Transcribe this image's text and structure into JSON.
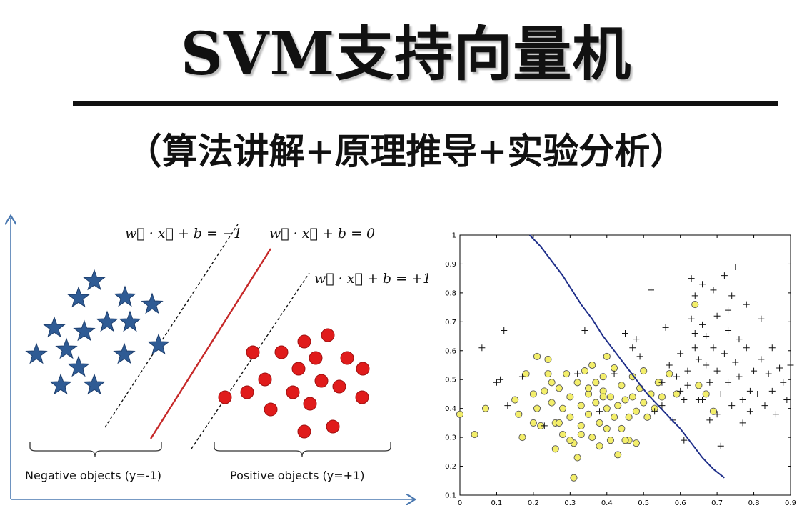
{
  "header": {
    "title": "SVM支持向量机",
    "subtitle": "（算法讲解+原理推导+实验分析）"
  },
  "left_diagram": {
    "equations": [
      "w⃗ · x⃗ + b = −1",
      "w⃗ · x⃗ + b = 0",
      "w⃗ · x⃗ + b = +1"
    ],
    "captions": {
      "negative": "Negative objects (y=-1)",
      "positive": "Positive objects (y=+1)"
    },
    "colors": {
      "star": "#2f5b94",
      "dot": "#e01b1b",
      "hyperplane": "#c62828",
      "margin": "#111111"
    },
    "icons": {
      "negative": "star-icon",
      "positive": "circle-icon"
    }
  },
  "chart_data": {
    "type": "scatter",
    "title": "",
    "xlabel": "",
    "ylabel": "",
    "xlim": [
      0,
      0.9
    ],
    "ylim": [
      0.1,
      1
    ],
    "x_ticks": [
      "0",
      "0.1",
      "0.2",
      "0.3",
      "0.4",
      "0.5",
      "0.6",
      "0.7",
      "0.8",
      "0.9"
    ],
    "y_ticks": [
      "0.1",
      "0.2",
      "0.3",
      "0.4",
      "0.5",
      "0.6",
      "0.7",
      "0.8",
      "0.9",
      "1"
    ],
    "colors": {
      "yellow": "#f3ee6a",
      "cross": "#111111",
      "boundary": "#1f2f8a"
    },
    "series": [
      {
        "marker": "circle",
        "points": [
          [
            0.0,
            0.38
          ],
          [
            0.04,
            0.31
          ],
          [
            0.07,
            0.4
          ],
          [
            0.15,
            0.43
          ],
          [
            0.16,
            0.38
          ],
          [
            0.17,
            0.3
          ],
          [
            0.18,
            0.52
          ],
          [
            0.2,
            0.45
          ],
          [
            0.21,
            0.4
          ],
          [
            0.22,
            0.34
          ],
          [
            0.23,
            0.46
          ],
          [
            0.24,
            0.57
          ],
          [
            0.24,
            0.52
          ],
          [
            0.25,
            0.42
          ],
          [
            0.26,
            0.35
          ],
          [
            0.26,
            0.26
          ],
          [
            0.27,
            0.47
          ],
          [
            0.28,
            0.4
          ],
          [
            0.28,
            0.31
          ],
          [
            0.29,
            0.52
          ],
          [
            0.3,
            0.44
          ],
          [
            0.3,
            0.37
          ],
          [
            0.31,
            0.28
          ],
          [
            0.31,
            0.16
          ],
          [
            0.32,
            0.49
          ],
          [
            0.32,
            0.23
          ],
          [
            0.33,
            0.41
          ],
          [
            0.33,
            0.34
          ],
          [
            0.34,
            0.53
          ],
          [
            0.35,
            0.45
          ],
          [
            0.35,
            0.38
          ],
          [
            0.36,
            0.3
          ],
          [
            0.36,
            0.55
          ],
          [
            0.37,
            0.49
          ],
          [
            0.37,
            0.42
          ],
          [
            0.38,
            0.35
          ],
          [
            0.38,
            0.27
          ],
          [
            0.39,
            0.51
          ],
          [
            0.39,
            0.46
          ],
          [
            0.4,
            0.4
          ],
          [
            0.4,
            0.33
          ],
          [
            0.41,
            0.44
          ],
          [
            0.41,
            0.29
          ],
          [
            0.42,
            0.37
          ],
          [
            0.42,
            0.54
          ],
          [
            0.43,
            0.41
          ],
          [
            0.43,
            0.24
          ],
          [
            0.44,
            0.48
          ],
          [
            0.44,
            0.33
          ],
          [
            0.45,
            0.43
          ],
          [
            0.46,
            0.37
          ],
          [
            0.46,
            0.29
          ],
          [
            0.47,
            0.51
          ],
          [
            0.47,
            0.44
          ],
          [
            0.48,
            0.39
          ],
          [
            0.49,
            0.47
          ],
          [
            0.5,
            0.42
          ],
          [
            0.5,
            0.53
          ],
          [
            0.51,
            0.37
          ],
          [
            0.52,
            0.45
          ],
          [
            0.53,
            0.4
          ],
          [
            0.54,
            0.49
          ],
          [
            0.55,
            0.44
          ],
          [
            0.57,
            0.52
          ],
          [
            0.59,
            0.45
          ],
          [
            0.64,
            0.76
          ],
          [
            0.65,
            0.48
          ],
          [
            0.67,
            0.45
          ],
          [
            0.69,
            0.39
          ],
          [
            0.2,
            0.35
          ],
          [
            0.27,
            0.35
          ],
          [
            0.33,
            0.31
          ],
          [
            0.35,
            0.47
          ],
          [
            0.39,
            0.44
          ],
          [
            0.45,
            0.29
          ],
          [
            0.25,
            0.49
          ],
          [
            0.3,
            0.29
          ],
          [
            0.21,
            0.58
          ],
          [
            0.4,
            0.58
          ],
          [
            0.48,
            0.28
          ]
        ]
      },
      {
        "marker": "plus",
        "points": [
          [
            0.06,
            0.61
          ],
          [
            0.1,
            0.49
          ],
          [
            0.11,
            0.5
          ],
          [
            0.12,
            0.67
          ],
          [
            0.13,
            0.41
          ],
          [
            0.17,
            0.51
          ],
          [
            0.23,
            0.34
          ],
          [
            0.32,
            0.52
          ],
          [
            0.34,
            0.67
          ],
          [
            0.38,
            0.39
          ],
          [
            0.42,
            0.52
          ],
          [
            0.45,
            0.66
          ],
          [
            0.47,
            0.61
          ],
          [
            0.48,
            0.64
          ],
          [
            0.49,
            0.58
          ],
          [
            0.52,
            0.81
          ],
          [
            0.53,
            0.39
          ],
          [
            0.55,
            0.49
          ],
          [
            0.55,
            0.41
          ],
          [
            0.56,
            0.68
          ],
          [
            0.57,
            0.55
          ],
          [
            0.58,
            0.36
          ],
          [
            0.59,
            0.51
          ],
          [
            0.6,
            0.59
          ],
          [
            0.61,
            0.43
          ],
          [
            0.61,
            0.29
          ],
          [
            0.62,
            0.53
          ],
          [
            0.62,
            0.48
          ],
          [
            0.63,
            0.71
          ],
          [
            0.63,
            0.85
          ],
          [
            0.64,
            0.61
          ],
          [
            0.64,
            0.79
          ],
          [
            0.65,
            0.57
          ],
          [
            0.65,
            0.43
          ],
          [
            0.66,
            0.69
          ],
          [
            0.66,
            0.83
          ],
          [
            0.67,
            0.65
          ],
          [
            0.67,
            0.55
          ],
          [
            0.68,
            0.49
          ],
          [
            0.68,
            0.36
          ],
          [
            0.69,
            0.81
          ],
          [
            0.69,
            0.61
          ],
          [
            0.7,
            0.72
          ],
          [
            0.7,
            0.53
          ],
          [
            0.71,
            0.45
          ],
          [
            0.71,
            0.27
          ],
          [
            0.72,
            0.86
          ],
          [
            0.72,
            0.59
          ],
          [
            0.73,
            0.67
          ],
          [
            0.73,
            0.49
          ],
          [
            0.74,
            0.41
          ],
          [
            0.74,
            0.79
          ],
          [
            0.75,
            0.56
          ],
          [
            0.75,
            0.89
          ],
          [
            0.76,
            0.64
          ],
          [
            0.76,
            0.51
          ],
          [
            0.77,
            0.43
          ],
          [
            0.77,
            0.35
          ],
          [
            0.78,
            0.76
          ],
          [
            0.78,
            0.61
          ],
          [
            0.79,
            0.46
          ],
          [
            0.79,
            0.39
          ],
          [
            0.8,
            0.53
          ],
          [
            0.81,
            0.45
          ],
          [
            0.82,
            0.57
          ],
          [
            0.83,
            0.41
          ],
          [
            0.84,
            0.52
          ],
          [
            0.85,
            0.46
          ],
          [
            0.86,
            0.38
          ],
          [
            0.87,
            0.54
          ],
          [
            0.88,
            0.49
          ],
          [
            0.89,
            0.43
          ],
          [
            0.9,
            0.55
          ],
          [
            0.82,
            0.71
          ],
          [
            0.85,
            0.61
          ],
          [
            0.6,
            0.46
          ],
          [
            0.64,
            0.66
          ],
          [
            0.7,
            0.38
          ],
          [
            0.73,
            0.74
          ],
          [
            0.66,
            0.43
          ]
        ]
      }
    ],
    "decision_boundary": [
      [
        0.19,
        1.0
      ],
      [
        0.22,
        0.96
      ],
      [
        0.25,
        0.91
      ],
      [
        0.28,
        0.86
      ],
      [
        0.3,
        0.82
      ],
      [
        0.33,
        0.76
      ],
      [
        0.36,
        0.71
      ],
      [
        0.39,
        0.65
      ],
      [
        0.42,
        0.6
      ],
      [
        0.45,
        0.55
      ],
      [
        0.48,
        0.5
      ],
      [
        0.51,
        0.45
      ],
      [
        0.54,
        0.41
      ],
      [
        0.57,
        0.37
      ],
      [
        0.6,
        0.33
      ],
      [
        0.63,
        0.28
      ],
      [
        0.66,
        0.23
      ],
      [
        0.69,
        0.19
      ],
      [
        0.72,
        0.16
      ]
    ]
  }
}
